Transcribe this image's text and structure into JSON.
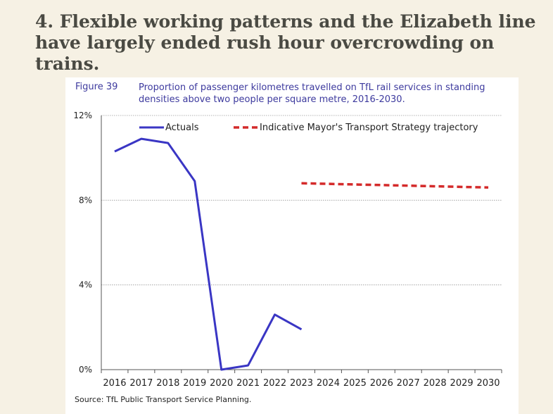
{
  "headline": "4. Flexible working patterns and the Elizabeth line have largely ended rush hour overcrowding on trains.",
  "figure": {
    "label": "Figure 39",
    "title": "Proportion of passenger kilometres travelled on TfL rail services in standing densities above two people per square metre, 2016-2030."
  },
  "source": "Source: TfL Public Transport Service Planning.",
  "colors": {
    "background": "#f6f1e4",
    "headline": "#4a4a43",
    "figure_text": "#3d3a9e",
    "actuals": "#3a36c4",
    "trajectory": "#d42a2a",
    "grid": "#9a9a9a"
  },
  "chart_data": {
    "type": "line",
    "x": [
      "2016",
      "2017",
      "2018",
      "2019",
      "2020",
      "2021",
      "2022",
      "2023",
      "2024",
      "2025",
      "2026",
      "2027",
      "2028",
      "2029",
      "2030"
    ],
    "ylim": [
      0,
      12
    ],
    "yticks": [
      "0%",
      "4%",
      "8%",
      "12%"
    ],
    "ytick_values": [
      0,
      4,
      8,
      12
    ],
    "grid": true,
    "legend_position": "top",
    "series": [
      {
        "name": "Actuals",
        "style": "solid",
        "color": "#3a36c4",
        "points": [
          [
            2016,
            10.3
          ],
          [
            2017,
            10.9
          ],
          [
            2018,
            10.7
          ],
          [
            2019,
            8.9
          ],
          [
            2020,
            0.0
          ],
          [
            2021,
            0.2
          ],
          [
            2022,
            2.6
          ],
          [
            2023,
            1.9
          ]
        ]
      },
      {
        "name": "Indicative Mayor's Transport Strategy trajectory",
        "style": "dashed",
        "color": "#d42a2a",
        "points": [
          [
            2023,
            8.8
          ],
          [
            2030,
            8.6
          ]
        ]
      }
    ]
  }
}
